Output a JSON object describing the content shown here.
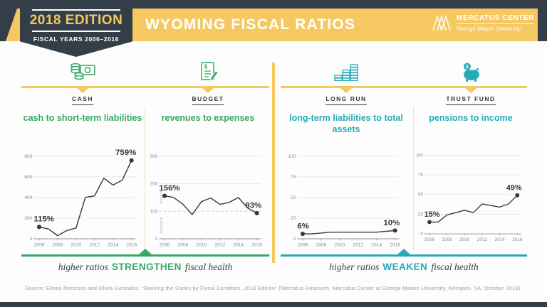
{
  "header": {
    "edition_badge": {
      "title": "2018 EDITION",
      "subtitle": "FISCAL YEARS 2006–2016"
    },
    "title": "WYOMING FISCAL RATIOS",
    "logo": {
      "line1": "MERCATUS CENTER",
      "line2": "George Mason University"
    }
  },
  "colors": {
    "navy": "#333e48",
    "yellow": "#f6c862",
    "green": "#35a862",
    "teal": "#27aab8"
  },
  "sections": [
    {
      "label": "CASH",
      "icon": "cash-icon"
    },
    {
      "label": "BUDGET",
      "icon": "budget-document-icon"
    },
    {
      "label": "LONG RUN",
      "icon": "long-run-bills-icon"
    },
    {
      "label": "TRUST FUND",
      "icon": "piggy-bank-icon"
    }
  ],
  "chart_data": [
    {
      "type": "line",
      "title": "cash to short-term liabilities",
      "section": "CASH",
      "x": [
        2006,
        2007,
        2008,
        2009,
        2010,
        2011,
        2012,
        2013,
        2014,
        2015,
        2016
      ],
      "values": [
        115,
        95,
        30,
        80,
        105,
        400,
        415,
        587,
        520,
        567,
        759
      ],
      "ylim": [
        0,
        800
      ],
      "yticks": [
        0,
        200,
        400,
        600,
        800
      ],
      "xticks": [
        2006,
        2008,
        2010,
        2012,
        2014,
        2016
      ],
      "first_label": "115%",
      "last_label": "759%",
      "grid": true,
      "legend": "none"
    },
    {
      "type": "line",
      "title": "revenues to expenses",
      "section": "BUDGET",
      "x": [
        2006,
        2007,
        2008,
        2009,
        2010,
        2011,
        2012,
        2013,
        2014,
        2015,
        2016
      ],
      "values": [
        156,
        150,
        125,
        88,
        135,
        148,
        125,
        132,
        150,
        112,
        93
      ],
      "ylim": [
        0,
        300
      ],
      "yticks": [
        0,
        100,
        200,
        300
      ],
      "xticks": [
        2006,
        2008,
        2010,
        2012,
        2014,
        2016
      ],
      "dashed_gridline_at": 100,
      "y_annotations": [
        {
          "text": "solvent",
          "at": 150
        },
        {
          "text": "insolvent",
          "at": 50
        }
      ],
      "first_label": "156%",
      "last_label": "93%",
      "grid": true,
      "legend": "none"
    },
    {
      "type": "line",
      "title": "long-term liabilities to total assets",
      "section": "LONG RUN",
      "x": [
        2006,
        2007,
        2008,
        2009,
        2010,
        2011,
        2012,
        2013,
        2014,
        2015,
        2016
      ],
      "values": [
        6,
        6,
        7,
        8,
        8,
        8,
        8,
        8,
        8,
        9,
        10
      ],
      "ylim": [
        0,
        100
      ],
      "yticks": [
        0,
        25,
        50,
        75,
        100
      ],
      "xticks": [
        2006,
        2008,
        2010,
        2012,
        2014,
        2016
      ],
      "first_label": "6%",
      "last_label": "10%",
      "grid": true,
      "legend": "none"
    },
    {
      "type": "line",
      "title": "pensions to income",
      "section": "TRUST FUND",
      "x": [
        2006,
        2007,
        2008,
        2009,
        2010,
        2011,
        2012,
        2013,
        2014,
        2015,
        2016
      ],
      "values": [
        15,
        15,
        24,
        27,
        30,
        27,
        38,
        36,
        34,
        38,
        49
      ],
      "ylim": [
        0,
        100
      ],
      "yticks": [
        0,
        25,
        50,
        75,
        100
      ],
      "xticks": [
        2006,
        2008,
        2010,
        2012,
        2014,
        2016
      ],
      "first_label": "15%",
      "last_label": "49%",
      "grid": true,
      "legend": "none"
    }
  ],
  "banners": {
    "left": {
      "prefix": "higher ratios",
      "keyword": "STRENGTHEN",
      "suffix": "fiscal health"
    },
    "right": {
      "prefix": "higher ratios",
      "keyword": "WEAKEN",
      "suffix": "fiscal health"
    }
  },
  "source": "Source: Eileen Norcross and Olivia Gonzalez, “Ranking the States by Fiscal Condition, 2018 Edition” (Mercatus Research, Mercatus Center at George Mason University, Arlington, VA, October 2018)."
}
